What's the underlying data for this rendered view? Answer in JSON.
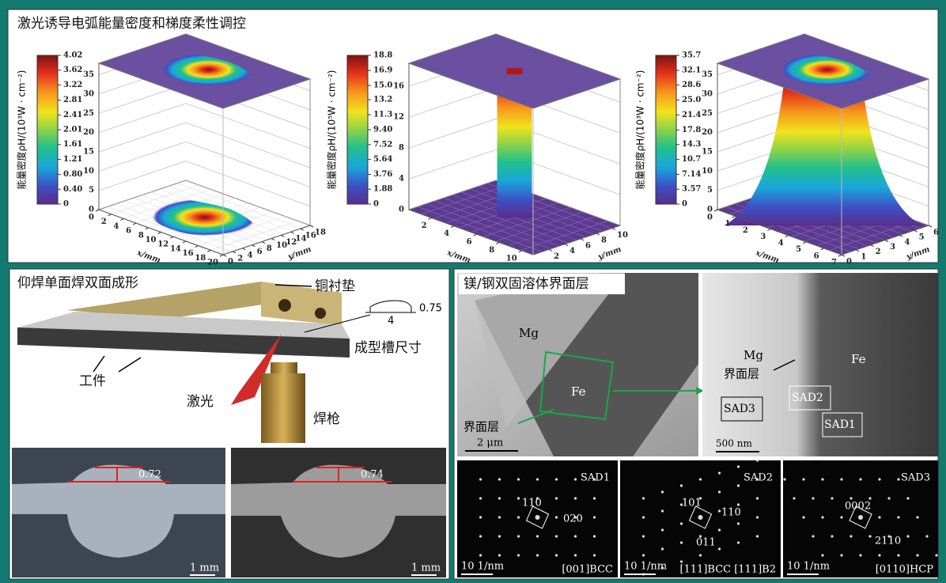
{
  "top": {
    "title": "激光诱导电弧能量密度和梯度柔性调控",
    "plots": [
      {
        "colorbar_label": "能量密度ρH/(10³W · cm⁻²)",
        "clim": [
          0,
          4.02
        ],
        "cticks": [
          0,
          {
            "value": 0.4,
            "label": "0.40"
          },
          {
            "value": 0.8,
            "label": "0.80"
          },
          1.21,
          1.61,
          2.01,
          2.41,
          2.81,
          3.22,
          3.62,
          4.02
        ],
        "zlim": [
          0,
          38
        ],
        "zticks": [
          0,
          5,
          10,
          15,
          20,
          25,
          30,
          35
        ],
        "xlabel": "x/mm",
        "xlim": [
          0,
          20
        ],
        "xticks": [
          0,
          2,
          4,
          6,
          8,
          10,
          12,
          14,
          16,
          18,
          20
        ],
        "ylabel": "y/mm",
        "ylim": [
          0,
          18
        ],
        "yticks": [
          0,
          2,
          4,
          6,
          8,
          10,
          12,
          14,
          16,
          18
        ]
      },
      {
        "colorbar_label": "能量密度ρH/(10⁵W · cm⁻²)",
        "clim": [
          0,
          18.8
        ],
        "cticks": [
          0,
          1.88,
          3.76,
          5.64,
          7.52,
          {
            "value": 9.4,
            "label": "9.40"
          },
          11.3,
          13.2,
          {
            "value": 15,
            "label": "15.0"
          },
          16.9,
          18.8
        ],
        "zlim": [
          0,
          19
        ],
        "zticks": [
          0,
          4,
          8,
          12,
          16
        ],
        "xlabel": "x/mm",
        "xlim": [
          0,
          11
        ],
        "xticks": [
          2,
          4,
          6,
          8,
          10
        ],
        "ylabel": "y/mm",
        "ylim": [
          0,
          11
        ],
        "yticks": [
          2,
          4,
          6,
          8,
          10
        ]
      },
      {
        "colorbar_label": "能量密度ρH/(10³W · cm⁻²)",
        "clim": [
          0,
          35.7
        ],
        "cticks": [
          0,
          3.57,
          7.14,
          10.7,
          14.3,
          17.8,
          21.4,
          {
            "value": 25,
            "label": "25.0"
          },
          28.6,
          32.1,
          35.7
        ],
        "zlim": [
          0,
          38
        ],
        "zticks": [
          0,
          5,
          10,
          15,
          20,
          25,
          30,
          35
        ],
        "xlabel": "x/mm",
        "xlim": [
          0,
          7
        ],
        "xticks": [
          0,
          1,
          2,
          3,
          4,
          5,
          6,
          7
        ],
        "ylabel": "y/mm",
        "ylim": [
          0,
          6
        ],
        "yticks": [
          0,
          1,
          2,
          3,
          4,
          5,
          6
        ]
      }
    ]
  },
  "welding": {
    "title": "仰焊单面焊双面成形",
    "copper_pad": "铜衬垫",
    "groove_height": "0.75",
    "groove_width": "4",
    "groove_size": "成型槽尺寸",
    "workpiece": "工件",
    "laser": "激光",
    "torch": "焊枪",
    "micrographs": [
      {
        "height": "0.72",
        "scale": "1 mm"
      },
      {
        "height": "0.74",
        "scale": "1 mm"
      }
    ]
  },
  "interface": {
    "title": "镁/钢双固溶体界面层",
    "tem_left": {
      "mg": "Mg",
      "fe": "Fe",
      "layer": "界面层",
      "scale": "2 μm"
    },
    "tem_right": {
      "mg": "Mg",
      "layer": "界面层",
      "fe": "Fe",
      "sad3": "SAD3",
      "sad2": "SAD2",
      "sad1": "SAD1",
      "scale": "500 nm"
    },
    "sad": [
      {
        "name": "SAD1",
        "spots": [
          "110",
          "020"
        ],
        "scale": "10 1/nm",
        "zone": "[001]BCC"
      },
      {
        "name": "SAD2",
        "spots": [
          "101",
          "110",
          "011"
        ],
        "scale": "10 1/nm",
        "zone": "[111]BCC  [111]B2"
      },
      {
        "name": "SAD3",
        "spots": [
          "0002",
          "2110"
        ],
        "scale": "10 1/nm",
        "zone": "[0110]HCP"
      }
    ]
  }
}
